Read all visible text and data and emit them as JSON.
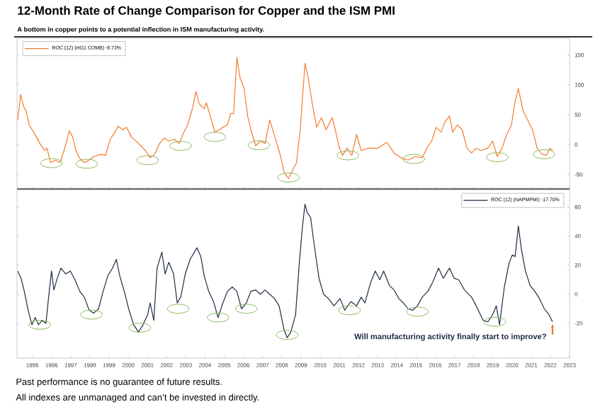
{
  "chart_data": [
    {
      "type": "line",
      "title": "12-Month Rate of Change Comparison for Copper and the ISM PMI",
      "subtitle": "A bottom in copper points to a potential inflection in ISM manufacturing activity.",
      "xlim": [
        1994.2,
        2023.0
      ],
      "xticks": [
        1995,
        1996,
        1997,
        1998,
        1999,
        2000,
        2001,
        2002,
        2003,
        2004,
        2005,
        2006,
        2007,
        2008,
        2009,
        2010,
        2011,
        2012,
        2013,
        2014,
        2015,
        2016,
        2017,
        2018,
        2019,
        2020,
        2021,
        2022,
        2023
      ],
      "ylim": [
        -73,
        178
      ],
      "yticks": [
        -50,
        0,
        50,
        100,
        150
      ],
      "tick_labels": "y",
      "legend": "top left",
      "series": [
        {
          "name": "ROC (12) (HG1 COMB) -8.73%",
          "color": "#f47a2c",
          "x": [
            1994.24,
            1994.39,
            1994.54,
            1994.68,
            1994.83,
            1995.07,
            1995.39,
            1995.64,
            1995.76,
            1995.95,
            1996.2,
            1996.44,
            1996.69,
            1996.93,
            1997.1,
            1997.27,
            1997.47,
            1997.71,
            1997.96,
            1998.2,
            1998.57,
            1998.81,
            1999.06,
            1999.3,
            1999.47,
            1999.72,
            1999.91,
            2000.16,
            2000.53,
            2000.89,
            2001.14,
            2001.38,
            2001.63,
            2001.87,
            2002.11,
            2002.41,
            2002.65,
            2002.9,
            2003.09,
            2003.34,
            2003.53,
            2003.7,
            2003.95,
            2004.07,
            2004.27,
            2004.51,
            2004.76,
            2004.93,
            2005.17,
            2005.34,
            2005.49,
            2005.66,
            2005.83,
            2006.03,
            2006.22,
            2006.39,
            2006.64,
            2006.88,
            2007.13,
            2007.37,
            2007.49,
            2007.74,
            2007.93,
            2008.11,
            2008.35,
            2008.59,
            2008.77,
            2008.96,
            2009.21,
            2009.38,
            2009.57,
            2009.82,
            2010.06,
            2010.31,
            2010.62,
            2010.79,
            2010.97,
            2011.16,
            2011.41,
            2011.65,
            2011.9,
            2012.14,
            2012.51,
            2013.0,
            2013.48,
            2013.85,
            2014.22,
            2014.58,
            2014.95,
            2015.32,
            2015.56,
            2015.81,
            2016.05,
            2016.3,
            2016.49,
            2016.74,
            2016.91,
            2017.15,
            2017.4,
            2017.65,
            2017.89,
            2018.13,
            2018.38,
            2018.74,
            2018.99,
            2019.23,
            2019.48,
            2019.72,
            2019.97,
            2020.16,
            2020.33,
            2020.58,
            2020.82,
            2021.07,
            2021.31,
            2021.56,
            2021.8,
            2021.97,
            2022.11
          ],
          "values": [
            41,
            84,
            64,
            56,
            33,
            21,
            2,
            -10,
            -6,
            -30,
            -26,
            -30,
            -6,
            23,
            13,
            -10,
            -23,
            -30,
            -26,
            -20,
            -16,
            -18,
            9,
            21,
            31,
            25,
            29,
            13,
            2,
            -10,
            -22,
            -16,
            2,
            11,
            6,
            9,
            2,
            21,
            33,
            60,
            89,
            68,
            60,
            70,
            48,
            21,
            25,
            29,
            33,
            52,
            52,
            146,
            111,
            95,
            48,
            25,
            -2,
            6,
            2,
            41,
            29,
            2,
            -18,
            -45,
            -57,
            -41,
            -30,
            25,
            136,
            111,
            72,
            29,
            45,
            25,
            45,
            25,
            -2,
            -18,
            -6,
            -18,
            17,
            -10,
            -6,
            -6,
            4,
            -14,
            -22,
            -26,
            -20,
            -22,
            -6,
            6,
            29,
            21,
            37,
            48,
            21,
            33,
            25,
            -6,
            -14,
            -6,
            -10,
            -6,
            6,
            -20,
            -6,
            17,
            33,
            72,
            94,
            56,
            41,
            25,
            -6,
            -16,
            -18,
            -6,
            -10
          ]
        },
        {
          "type": "scatter",
          "marker": "circle",
          "color": "#8db85a",
          "x": [
            1996.0,
            1997.84,
            2001.01,
            2002.73,
            2004.51,
            2006.81,
            2008.35,
            2011.45,
            2014.88,
            2019.23,
            2021.67
          ],
          "values": [
            -31,
            -32,
            -26,
            -2,
            13,
            -1,
            -55,
            -18,
            -24,
            -21,
            -16
          ]
        }
      ]
    },
    {
      "type": "line",
      "xlim": [
        1994.2,
        2023.0
      ],
      "xticks": [
        1995,
        1996,
        1997,
        1998,
        1999,
        2000,
        2001,
        2002,
        2003,
        2004,
        2005,
        2006,
        2007,
        2008,
        2009,
        2010,
        2011,
        2012,
        2013,
        2014,
        2015,
        2016,
        2017,
        2018,
        2019,
        2020,
        2021,
        2022,
        2023
      ],
      "ylim": [
        -44,
        72
      ],
      "yticks": [
        -20,
        0,
        20,
        40,
        60
      ],
      "legend": "top right",
      "annotations": [
        {
          "text": "Will manufacturing activity finally start to improve?",
          "x": 2022.11,
          "y": -19
        },
        "Past performance is no guarantee of future results.",
        "All indexes are unmanaged and can’t be invested in directly."
      ],
      "series": [
        {
          "name": "ROC (12) (NAPMPMI) -17.70%",
          "color": "#1f2a44",
          "x": [
            1994.24,
            1994.41,
            1994.58,
            1994.78,
            1994.98,
            1995.15,
            1995.32,
            1995.51,
            1995.71,
            1995.88,
            1996.0,
            1996.12,
            1996.3,
            1996.49,
            1996.74,
            1996.98,
            1997.22,
            1997.47,
            1997.71,
            1997.96,
            1998.2,
            1998.45,
            1998.69,
            1998.94,
            1999.18,
            1999.38,
            1999.55,
            1999.79,
            2000.04,
            2000.28,
            2000.53,
            2000.77,
            2001.01,
            2001.14,
            2001.33,
            2001.5,
            2001.75,
            2001.92,
            2002.11,
            2002.36,
            2002.55,
            2002.73,
            2002.97,
            2003.22,
            2003.58,
            2003.78,
            2003.95,
            2004.19,
            2004.44,
            2004.68,
            2004.93,
            2005.17,
            2005.42,
            2005.66,
            2005.9,
            2006.15,
            2006.39,
            2006.64,
            2006.88,
            2007.13,
            2007.37,
            2007.62,
            2007.86,
            2008.11,
            2008.28,
            2008.47,
            2008.72,
            2008.91,
            2009.08,
            2009.21,
            2009.33,
            2009.5,
            2009.69,
            2009.94,
            2010.18,
            2010.43,
            2010.72,
            2011.04,
            2011.28,
            2011.6,
            2011.9,
            2012.14,
            2012.33,
            2012.63,
            2012.87,
            2013.11,
            2013.31,
            2013.61,
            2013.85,
            2014.1,
            2014.34,
            2014.58,
            2014.83,
            2015.07,
            2015.32,
            2015.61,
            2015.86,
            2016.17,
            2016.42,
            2016.74,
            2016.98,
            2017.22,
            2017.52,
            2017.89,
            2018.13,
            2018.5,
            2018.74,
            2018.99,
            2019.18,
            2019.35,
            2019.6,
            2019.84,
            2020.01,
            2020.16,
            2020.33,
            2020.5,
            2020.7,
            2020.94,
            2021.19,
            2021.43,
            2021.68,
            2021.92,
            2022.11
          ],
          "values": [
            16,
            11,
            2,
            -11,
            -21,
            -16,
            -21,
            -18,
            -20,
            2,
            16,
            3,
            11,
            18,
            14,
            16,
            10,
            2,
            -2,
            -11,
            -13,
            -10,
            2,
            13,
            18,
            24,
            13,
            2,
            -11,
            -21,
            -26,
            -21,
            -14,
            -6,
            -18,
            18,
            29,
            14,
            22,
            14,
            -6,
            -2,
            14,
            24,
            32,
            26,
            13,
            2,
            -5,
            -16,
            -6,
            2,
            5,
            2,
            -10,
            -6,
            2,
            3,
            0,
            3,
            0,
            -3,
            -8,
            -24,
            -30,
            -26,
            -14,
            21,
            47,
            62,
            56,
            53,
            34,
            11,
            0,
            -3,
            -8,
            -3,
            -11,
            -5,
            -8,
            -2,
            -6,
            8,
            16,
            10,
            16,
            6,
            3,
            -3,
            -6,
            -10,
            -11,
            -8,
            -2,
            2,
            8,
            18,
            11,
            18,
            11,
            10,
            3,
            -2,
            -8,
            -18,
            -19,
            -14,
            -8,
            -21,
            5,
            21,
            27,
            26,
            47,
            30,
            16,
            6,
            2,
            -3,
            -10,
            -14,
            -19
          ]
        },
        {
          "type": "scatter",
          "marker": "circle",
          "color": "#8db85a",
          "x": [
            1995.39,
            1998.08,
            2000.6,
            2002.6,
            2004.68,
            2006.15,
            2008.28,
            2011.53,
            2015.07,
            2019.11
          ],
          "values": [
            -21,
            -14,
            -23,
            -10,
            -16,
            -10,
            -28,
            -11,
            -12,
            -19
          ]
        }
      ]
    }
  ]
}
